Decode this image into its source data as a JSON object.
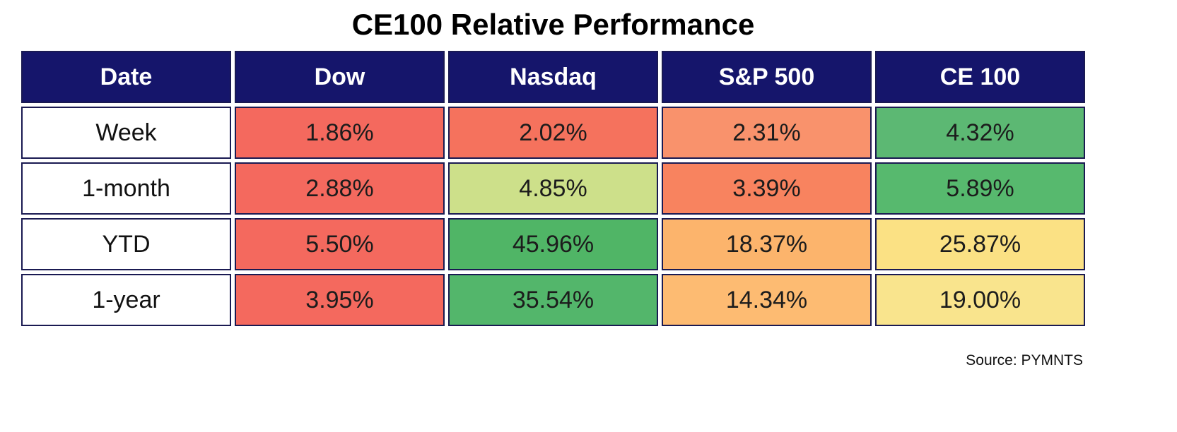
{
  "title": "CE100 Relative Performance",
  "source": "Source: PYMNTS",
  "colors": {
    "header_bg": "#15156b",
    "header_text": "#ffffff",
    "border": "#1a1a52"
  },
  "chart_data": {
    "type": "table",
    "title": "CE100 Relative Performance",
    "columns": [
      "Date",
      "Dow",
      "Nasdaq",
      "S&P 500",
      "CE 100"
    ],
    "rows": [
      {
        "label": "Week",
        "values": [
          "1.86%",
          "2.02%",
          "2.31%",
          "4.32%"
        ],
        "colors": [
          "#f4695e",
          "#f5725d",
          "#f9926c",
          "#5cb873"
        ]
      },
      {
        "label": "1-month",
        "values": [
          "2.88%",
          "4.85%",
          "3.39%",
          "5.89%"
        ],
        "colors": [
          "#f4695e",
          "#cde08a",
          "#f8835f",
          "#57b96e"
        ]
      },
      {
        "label": "YTD",
        "values": [
          "5.50%",
          "45.96%",
          "18.37%",
          "25.87%"
        ],
        "colors": [
          "#f4695e",
          "#50b566",
          "#fcb46c",
          "#fbe184"
        ]
      },
      {
        "label": "1-year",
        "values": [
          "3.95%",
          "35.54%",
          "14.34%",
          "19.00%"
        ],
        "colors": [
          "#f4695e",
          "#53b66b",
          "#fdbb72",
          "#f9e48d"
        ]
      }
    ]
  }
}
